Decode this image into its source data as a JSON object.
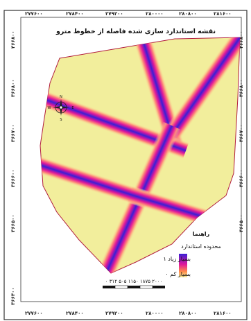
{
  "map": {
    "title": "نقشه استاندارد سازی شده فاصله از خطوط مترو",
    "x_ticks": [
      "۲۷۷۶۰۰",
      "۲۷۸۴۰۰",
      "۲۷۹۲۰۰",
      "۲۸۰۰۰۰",
      "۲۸۰۸۰۰",
      "۲۸۱۶۰۰"
    ],
    "y_ticks": [
      "۳۶۶۸۰۰",
      "۳۶۶۸۰۰",
      "۳۶۶۷۰۰",
      "۳۶۶۶۰۰",
      "۳۶۶۵۰۰",
      "۳۶۶۴۰۰"
    ],
    "legend": {
      "heading": "راهنما",
      "subheading": "محدوده استاندارد",
      "high_label": "بسیار زیاد ۱",
      "low_label": "بسیار کم ۰",
      "high_color": "#3a1fd6",
      "mid_color": "#e0189a",
      "low_color": "#f5ee9a"
    },
    "scale_bar": {
      "label": "۰ ۳۱۲ ۵۰۵ ۱۱۵۰ ۱۸۷۵ ۲۰۰۰"
    },
    "compass": {
      "n": "N",
      "s": "S",
      "e": "E",
      "w": "W"
    },
    "colors": {
      "area_fill": "#f2ee9c",
      "outline": "#b11b3c"
    }
  }
}
